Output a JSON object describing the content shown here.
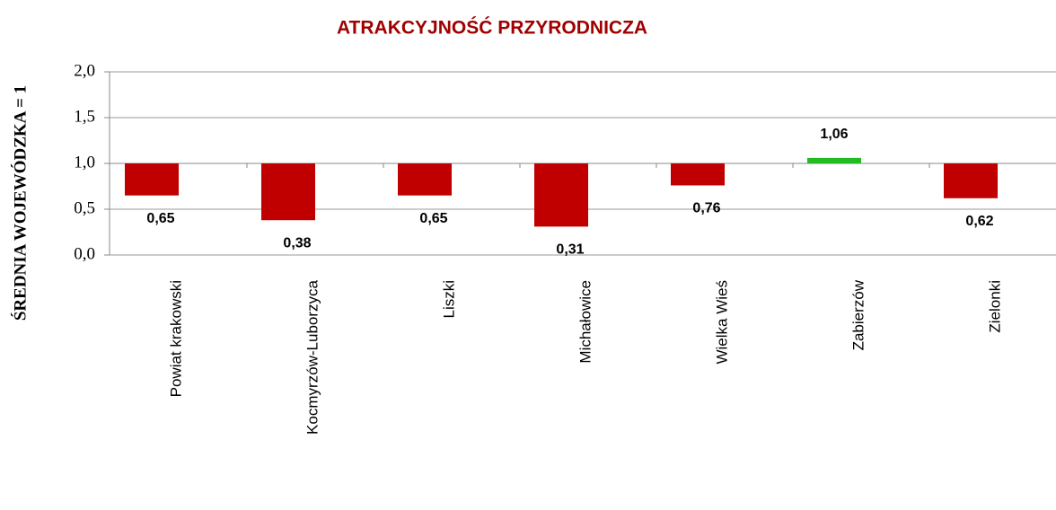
{
  "chart_data": {
    "type": "bar",
    "title": "ATRAKCYJNOŚĆ PRZYRODNICZA",
    "y_label": "ŚREDNIA WOJEWÓDZKA = 1",
    "categories": [
      "Powiat krakowski",
      "Kocmyrzów-Luborzyca",
      "Liszki",
      "Michałowice",
      "Wielka Wieś",
      "Zabierzów",
      "Zielonki"
    ],
    "values": [
      0.65,
      0.38,
      0.65,
      0.31,
      0.76,
      1.06,
      0.62
    ],
    "value_labels": [
      "0,65",
      "0,38",
      "0,65",
      "0,31",
      "0,76",
      "1,06",
      "0,62"
    ],
    "colors": [
      "#c00000",
      "#c00000",
      "#c00000",
      "#c00000",
      "#c00000",
      "#22bb22",
      "#c00000"
    ],
    "baseline": 1,
    "ylim": [
      0,
      2
    ],
    "yticks": [
      {
        "value": 0,
        "label": "0,0"
      },
      {
        "value": 0.5,
        "label": "0,5"
      },
      {
        "value": 1,
        "label": "1,0"
      },
      {
        "value": 1.5,
        "label": "1,5"
      },
      {
        "value": 2,
        "label": "2,0"
      }
    ],
    "grid": true
  }
}
